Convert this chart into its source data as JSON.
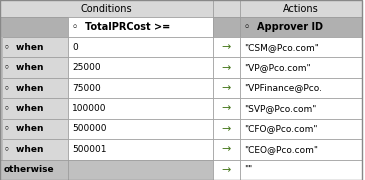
{
  "conditions_header": "Conditions",
  "actions_header": "Actions",
  "col1_header": "◦  TotalPRCost >=",
  "col2_header": "◦  Approver ID",
  "rows": [
    {
      "type": "when",
      "condition": "0",
      "action": "\"CSM@Pco.com\"",
      "row_bg": "#ffffff"
    },
    {
      "type": "when",
      "condition": "25000",
      "action": "\"VP@Pco.com\"",
      "row_bg": "#f5f5f5"
    },
    {
      "type": "when",
      "condition": "75000",
      "action": "\"VPFinance@Pco.",
      "row_bg": "#ffffff"
    },
    {
      "type": "when",
      "condition": "100000",
      "action": "\"SVP@Pco.com\"",
      "row_bg": "#f5f5f5"
    },
    {
      "type": "when",
      "condition": "500000",
      "action": "\"CFO@Pco.com\"",
      "row_bg": "#ffffff"
    },
    {
      "type": "when",
      "condition": "500001",
      "action": "\"CEO@Pco.com\"",
      "row_bg": "#f5f5f5"
    },
    {
      "type": "otherwise",
      "condition": "",
      "action": "\"\"",
      "row_bg": "#c8c8c8"
    }
  ],
  "arrow": "→",
  "bg_white": "#ffffff",
  "bg_light_gray": "#d8d8d8",
  "bg_header_gray": "#b0b0b0",
  "bg_medium_gray": "#c0c0c0",
  "bg_otherwise": "#c8c8c8",
  "text_dark": "#000000",
  "arrow_color": "#4a7a20",
  "border_color": "#999999",
  "left_border_color": "#888888",
  "figsize": [
    3.65,
    1.8
  ],
  "dpi": 100
}
